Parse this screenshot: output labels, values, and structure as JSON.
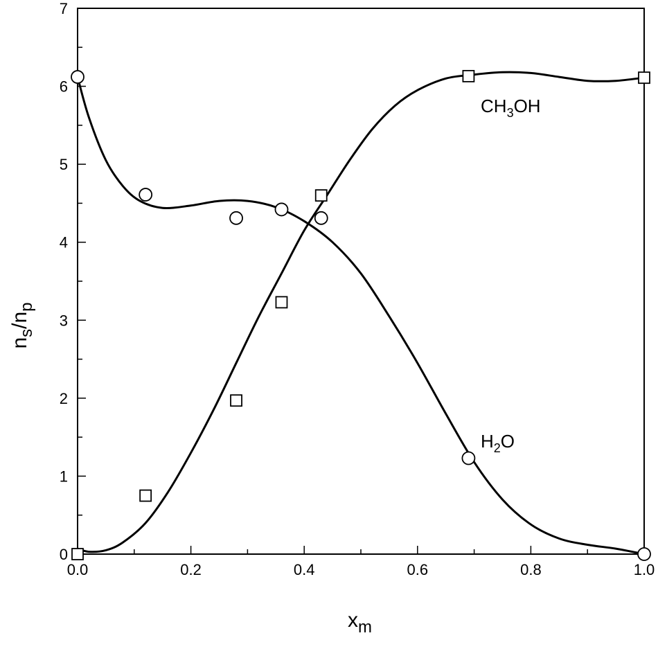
{
  "chart_data": {
    "type": "scatter",
    "title": "",
    "xlabel": {
      "main": "x",
      "sub": "m"
    },
    "ylabel": {
      "n1": "n",
      "s1": "s",
      "slash": "/",
      "n2": "n",
      "s2": "p"
    },
    "xlim": [
      0,
      1
    ],
    "ylim": [
      0,
      7
    ],
    "xticks": [
      "0.0",
      "0.2",
      "0.4",
      "0.6",
      "0.8",
      "1.0"
    ],
    "yticks": [
      "0",
      "1",
      "2",
      "3",
      "4",
      "5",
      "6",
      "7"
    ],
    "grid": false,
    "series": [
      {
        "name": "CH3OH",
        "label": {
          "main": "CH",
          "sub": "3",
          "rest": "OH"
        },
        "marker": "square",
        "points": [
          [
            0.0,
            0.0
          ],
          [
            0.12,
            0.75
          ],
          [
            0.28,
            1.97
          ],
          [
            0.36,
            3.23
          ],
          [
            0.43,
            4.6
          ],
          [
            0.69,
            6.13
          ],
          [
            1.0,
            6.11
          ]
        ],
        "curve": [
          [
            0.0,
            0.07
          ],
          [
            0.02,
            0.03
          ],
          [
            0.05,
            0.05
          ],
          [
            0.08,
            0.15
          ],
          [
            0.12,
            0.4
          ],
          [
            0.16,
            0.8
          ],
          [
            0.2,
            1.3
          ],
          [
            0.24,
            1.85
          ],
          [
            0.28,
            2.45
          ],
          [
            0.32,
            3.05
          ],
          [
            0.36,
            3.6
          ],
          [
            0.4,
            4.15
          ],
          [
            0.44,
            4.6
          ],
          [
            0.48,
            5.05
          ],
          [
            0.52,
            5.45
          ],
          [
            0.56,
            5.75
          ],
          [
            0.6,
            5.95
          ],
          [
            0.65,
            6.1
          ],
          [
            0.7,
            6.15
          ],
          [
            0.75,
            6.18
          ],
          [
            0.8,
            6.17
          ],
          [
            0.85,
            6.12
          ],
          [
            0.9,
            6.07
          ],
          [
            0.95,
            6.07
          ],
          [
            1.0,
            6.11
          ]
        ]
      },
      {
        "name": "H2O",
        "label": {
          "main": "H",
          "sub": "2",
          "rest": "O"
        },
        "marker": "circle",
        "points": [
          [
            0.0,
            6.12
          ],
          [
            0.12,
            4.61
          ],
          [
            0.28,
            4.31
          ],
          [
            0.36,
            4.42
          ],
          [
            0.43,
            4.31
          ],
          [
            0.69,
            1.23
          ],
          [
            1.0,
            0.0
          ]
        ],
        "curve": [
          [
            0.0,
            6.12
          ],
          [
            0.02,
            5.6
          ],
          [
            0.05,
            5.05
          ],
          [
            0.08,
            4.72
          ],
          [
            0.11,
            4.53
          ],
          [
            0.15,
            4.44
          ],
          [
            0.2,
            4.47
          ],
          [
            0.25,
            4.53
          ],
          [
            0.3,
            4.53
          ],
          [
            0.35,
            4.45
          ],
          [
            0.4,
            4.27
          ],
          [
            0.45,
            4.0
          ],
          [
            0.5,
            3.6
          ],
          [
            0.55,
            3.05
          ],
          [
            0.6,
            2.45
          ],
          [
            0.65,
            1.8
          ],
          [
            0.7,
            1.18
          ],
          [
            0.75,
            0.7
          ],
          [
            0.8,
            0.38
          ],
          [
            0.85,
            0.2
          ],
          [
            0.9,
            0.12
          ],
          [
            0.95,
            0.07
          ],
          [
            1.0,
            0.0
          ]
        ]
      }
    ]
  }
}
